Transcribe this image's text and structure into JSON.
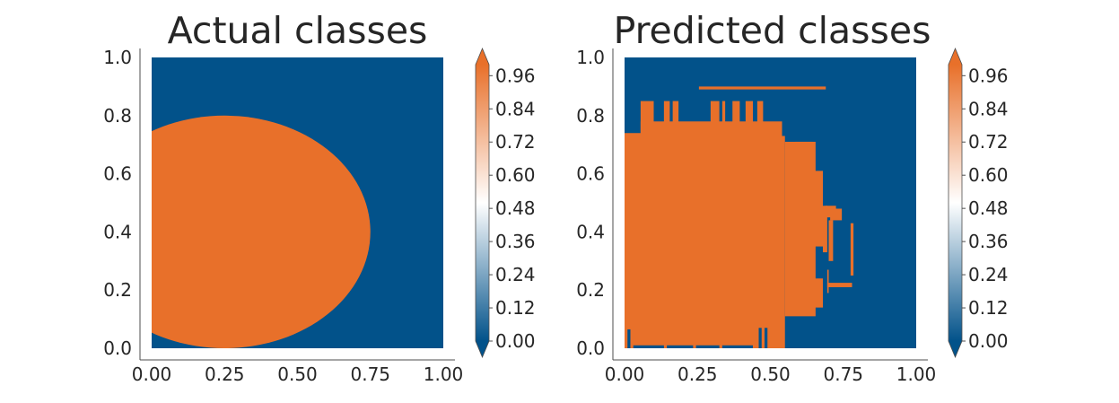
{
  "colors": {
    "class0": "#02528A",
    "class1": "#E8702A",
    "colormap_stops": [
      "#02528A",
      "#ffffff",
      "#E8702A"
    ],
    "axis": "#4d4d4d",
    "text": "#262626"
  },
  "chart_data": [
    {
      "type": "heatmap",
      "title": "Actual classes",
      "xlabel": "",
      "ylabel": "",
      "xlim": [
        0.0,
        1.0
      ],
      "ylim": [
        0.0,
        1.0
      ],
      "x_ticks": [
        "0.00",
        "0.25",
        "0.50",
        "0.75",
        "1.00"
      ],
      "y_ticks": [
        "0.0",
        "0.2",
        "0.4",
        "0.6",
        "0.8",
        "1.0"
      ],
      "grid": false,
      "background_class": 0,
      "regions": [
        {
          "shape": "ellipse",
          "class": 1,
          "cx": 0.25,
          "cy": 0.4,
          "rx": 0.5,
          "ry": 0.4
        }
      ],
      "colorbar": {
        "range": [
          0.0,
          1.0
        ],
        "extend": "both",
        "ticks": [
          "0.00",
          "0.12",
          "0.24",
          "0.36",
          "0.48",
          "0.60",
          "0.72",
          "0.84",
          "0.96"
        ]
      }
    },
    {
      "type": "heatmap",
      "title": "Predicted classes",
      "xlabel": "",
      "ylabel": "",
      "xlim": [
        0.0,
        1.0
      ],
      "ylim": [
        0.0,
        1.0
      ],
      "x_ticks": [
        "0.00",
        "0.25",
        "0.50",
        "0.75",
        "1.00"
      ],
      "y_ticks": [
        "0.0",
        "0.2",
        "0.4",
        "0.6",
        "0.8",
        "1.0"
      ],
      "grid": false,
      "background_class": 0,
      "regions": [
        {
          "shape": "rect",
          "class": 1,
          "x0": 0.0,
          "x1": 0.495,
          "y0": 0.0,
          "y1": 0.74
        },
        {
          "shape": "rect",
          "class": 1,
          "x0": 0.055,
          "x1": 0.54,
          "y0": 0.0,
          "y1": 0.78
        },
        {
          "shape": "rect",
          "class": 1,
          "x0": 0.495,
          "x1": 0.55,
          "y0": 0.0,
          "y1": 0.73
        },
        {
          "shape": "rect",
          "class": 1,
          "x0": 0.55,
          "x1": 0.655,
          "y0": 0.11,
          "y1": 0.71
        },
        {
          "shape": "rect",
          "class": 1,
          "x0": 0.585,
          "x1": 0.645,
          "y0": 0.2,
          "y1": 0.71
        },
        {
          "shape": "rect",
          "class": 1,
          "x0": 0.645,
          "x1": 0.68,
          "y0": 0.35,
          "y1": 0.61
        },
        {
          "shape": "rect",
          "class": 1,
          "x0": 0.645,
          "x1": 0.68,
          "y0": 0.14,
          "y1": 0.24
        },
        {
          "shape": "rect",
          "class": 1,
          "x0": 0.68,
          "x1": 0.695,
          "y0": 0.33,
          "y1": 0.49
        },
        {
          "shape": "rect",
          "class": 1,
          "x0": 0.69,
          "x1": 0.725,
          "y0": 0.45,
          "y1": 0.49
        },
        {
          "shape": "rect",
          "class": 1,
          "x0": 0.705,
          "x1": 0.745,
          "y0": 0.44,
          "y1": 0.48
        },
        {
          "shape": "rect",
          "class": 1,
          "x0": 0.7,
          "x1": 0.715,
          "y0": 0.3,
          "y1": 0.44
        },
        {
          "shape": "rect",
          "class": 1,
          "x0": 0.695,
          "x1": 0.7,
          "y0": 0.19,
          "y1": 0.27
        },
        {
          "shape": "rect",
          "class": 1,
          "x0": 0.695,
          "x1": 0.78,
          "y0": 0.21,
          "y1": 0.225
        },
        {
          "shape": "rect",
          "class": 1,
          "x0": 0.775,
          "x1": 0.785,
          "y0": 0.25,
          "y1": 0.43
        },
        {
          "shape": "rect",
          "class": 1,
          "x0": 0.255,
          "x1": 0.69,
          "y0": 0.89,
          "y1": 0.9
        },
        {
          "shape": "rect",
          "class": 1,
          "x0": 0.055,
          "x1": 0.1,
          "y0": 0.74,
          "y1": 0.85
        },
        {
          "shape": "rect",
          "class": 1,
          "x0": 0.135,
          "x1": 0.155,
          "y0": 0.74,
          "y1": 0.85
        },
        {
          "shape": "rect",
          "class": 1,
          "x0": 0.165,
          "x1": 0.185,
          "y0": 0.74,
          "y1": 0.85
        },
        {
          "shape": "rect",
          "class": 1,
          "x0": 0.295,
          "x1": 0.325,
          "y0": 0.74,
          "y1": 0.85
        },
        {
          "shape": "rect",
          "class": 1,
          "x0": 0.335,
          "x1": 0.345,
          "y0": 0.74,
          "y1": 0.85
        },
        {
          "shape": "rect",
          "class": 1,
          "x0": 0.37,
          "x1": 0.395,
          "y0": 0.74,
          "y1": 0.85
        },
        {
          "shape": "rect",
          "class": 1,
          "x0": 0.415,
          "x1": 0.44,
          "y0": 0.74,
          "y1": 0.85
        },
        {
          "shape": "rect",
          "class": 1,
          "x0": 0.455,
          "x1": 0.475,
          "y0": 0.74,
          "y1": 0.85
        },
        {
          "shape": "rect",
          "class": 0,
          "x0": 0.01,
          "x1": 0.02,
          "y0": 0.0,
          "y1": 0.065
        },
        {
          "shape": "rect",
          "class": 0,
          "x0": 0.03,
          "x1": 0.135,
          "y0": 0.0,
          "y1": 0.01
        },
        {
          "shape": "rect",
          "class": 0,
          "x0": 0.145,
          "x1": 0.235,
          "y0": 0.0,
          "y1": 0.01
        },
        {
          "shape": "rect",
          "class": 0,
          "x0": 0.245,
          "x1": 0.325,
          "y0": 0.0,
          "y1": 0.01
        },
        {
          "shape": "rect",
          "class": 0,
          "x0": 0.335,
          "x1": 0.44,
          "y0": 0.0,
          "y1": 0.01
        },
        {
          "shape": "rect",
          "class": 0,
          "x0": 0.46,
          "x1": 0.47,
          "y0": 0.0,
          "y1": 0.07
        },
        {
          "shape": "rect",
          "class": 0,
          "x0": 0.48,
          "x1": 0.49,
          "y0": 0.0,
          "y1": 0.07
        }
      ],
      "colorbar": {
        "range": [
          0.0,
          1.0
        ],
        "extend": "both",
        "ticks": [
          "0.00",
          "0.12",
          "0.24",
          "0.36",
          "0.48",
          "0.60",
          "0.72",
          "0.84",
          "0.96"
        ]
      }
    }
  ]
}
